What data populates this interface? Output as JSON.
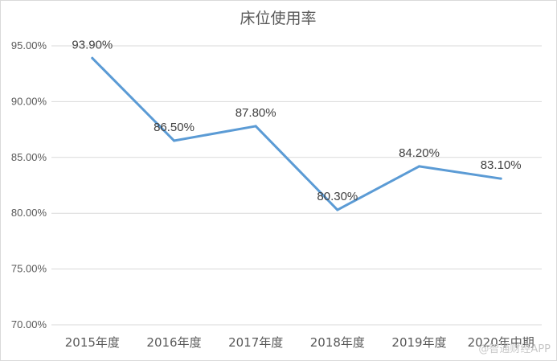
{
  "chart_data": {
    "type": "line",
    "title": "床位使用率",
    "categories": [
      "2015年度",
      "2016年度",
      "2017年度",
      "2018年度",
      "2019年度",
      "2020年中期"
    ],
    "series": [
      {
        "values": [
          93.9,
          86.5,
          87.8,
          80.3,
          84.2,
          83.1
        ],
        "labels": [
          "93.90%",
          "86.50%",
          "87.80%",
          "80.30%",
          "84.20%",
          "83.10%"
        ],
        "color": "#5b9bd5"
      }
    ],
    "ylim": [
      70,
      95
    ],
    "yticks": [
      70,
      75,
      80,
      85,
      90,
      95
    ],
    "ytick_labels": [
      "70.00%",
      "75.00%",
      "80.00%",
      "85.00%",
      "90.00%",
      "95.00%"
    ],
    "grid": true,
    "legend": "none"
  },
  "watermark": "@智通财经APP"
}
